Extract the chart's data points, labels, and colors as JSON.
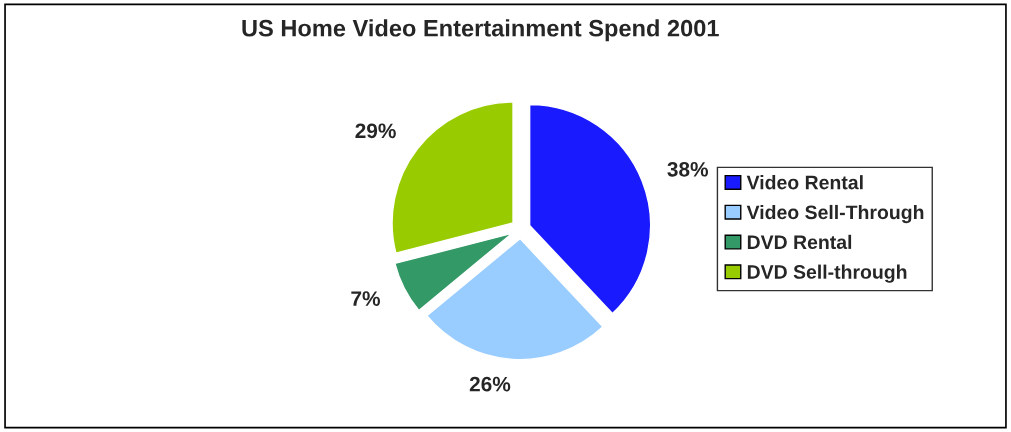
{
  "chart_data": {
    "type": "pie",
    "title": "US Home Video Entertainment Spend 2001",
    "categories": [
      "Video Rental",
      "Video Sell-Through",
      "DVD Rental",
      "DVD Sell-through"
    ],
    "values": [
      38,
      26,
      7,
      29
    ],
    "value_labels": [
      "38%",
      "26%",
      "7%",
      "29%"
    ],
    "colors": [
      "#1a1aff",
      "#99ccff",
      "#339966",
      "#99cc00"
    ],
    "legend": "right"
  }
}
